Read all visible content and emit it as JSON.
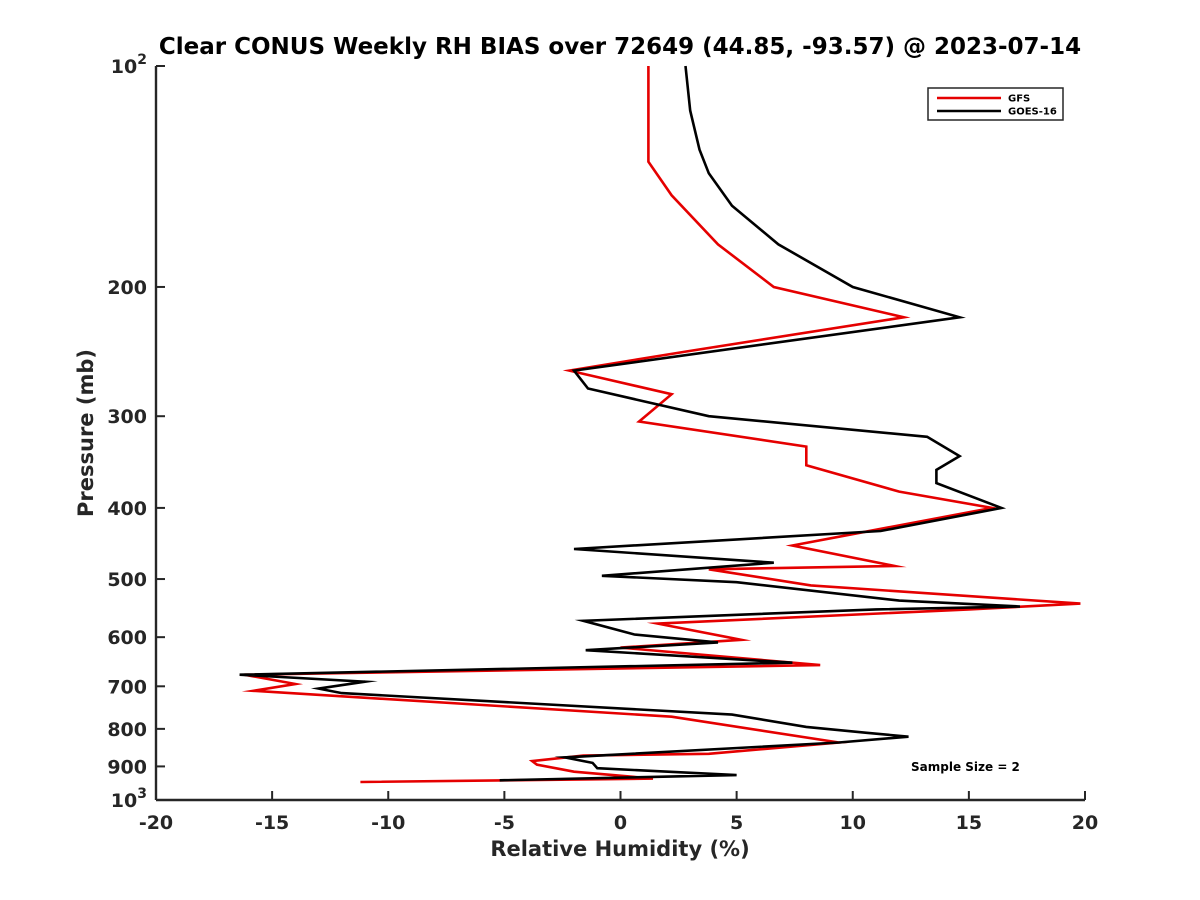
{
  "chart_data": {
    "type": "line",
    "title": "Clear CONUS Weekly RH BIAS over 72649 (44.85, -93.57) @ 2023-07-14",
    "xlabel": "Relative Humidity (%)",
    "ylabel": "Pressure (mb)",
    "xlim": [
      -20,
      20
    ],
    "ylim": [
      100,
      1000
    ],
    "y_scale": "log",
    "y_reversed": true,
    "x_ticks": [
      -20,
      -15,
      -10,
      -5,
      0,
      5,
      10,
      15,
      20
    ],
    "x_tick_labels": [
      "-20",
      "-15",
      "-10",
      "-5",
      "0",
      "5",
      "10",
      "15",
      "20"
    ],
    "y_tick_values": [
      100,
      200,
      300,
      400,
      500,
      600,
      700,
      800,
      900,
      1000
    ],
    "y_tick_labels": [
      "10^2",
      "200",
      "300",
      "400",
      "500",
      "600",
      "700",
      "800",
      "900",
      "10^3"
    ],
    "grid": false,
    "legend_position": "top-right",
    "annotation": "Sample Size = 2",
    "series": [
      {
        "name": "GFS",
        "color": "#e50000",
        "points": [
          [
            1.2,
            100
          ],
          [
            1.2,
            115
          ],
          [
            1.2,
            135
          ],
          [
            2.2,
            150
          ],
          [
            4.2,
            175
          ],
          [
            6.6,
            200
          ],
          [
            12.2,
            220
          ],
          [
            2.8,
            245
          ],
          [
            -2.2,
            260
          ],
          [
            2.2,
            280
          ],
          [
            0.8,
            305
          ],
          [
            8.0,
            330
          ],
          [
            8.0,
            350
          ],
          [
            12.0,
            380
          ],
          [
            16.0,
            400
          ],
          [
            7.4,
            450
          ],
          [
            11.8,
            480
          ],
          [
            3.8,
            485
          ],
          [
            8.2,
            510
          ],
          [
            19.8,
            540
          ],
          [
            15.0,
            550
          ],
          [
            1.6,
            575
          ],
          [
            5.2,
            605
          ],
          [
            0.0,
            620
          ],
          [
            8.6,
            655
          ],
          [
            -16.2,
            675
          ],
          [
            -14.0,
            695
          ],
          [
            -15.8,
            710
          ],
          [
            2.2,
            770
          ],
          [
            9.4,
            835
          ],
          [
            3.8,
            865
          ],
          [
            -1.6,
            870
          ],
          [
            -3.8,
            885
          ],
          [
            -3.6,
            895
          ],
          [
            -2.0,
            915
          ],
          [
            1.4,
            935
          ],
          [
            -11.2,
            945
          ]
        ]
      },
      {
        "name": "GOES-16",
        "color": "#000000",
        "points": [
          [
            2.8,
            100
          ],
          [
            3.0,
            115
          ],
          [
            3.4,
            130
          ],
          [
            3.8,
            140
          ],
          [
            4.8,
            155
          ],
          [
            6.8,
            175
          ],
          [
            10.0,
            200
          ],
          [
            14.6,
            220
          ],
          [
            -2.0,
            260
          ],
          [
            -1.4,
            275
          ],
          [
            3.8,
            300
          ],
          [
            13.2,
            320
          ],
          [
            14.6,
            340
          ],
          [
            13.6,
            355
          ],
          [
            13.6,
            370
          ],
          [
            16.4,
            400
          ],
          [
            11.2,
            430
          ],
          [
            -2.0,
            455
          ],
          [
            6.6,
            475
          ],
          [
            -0.8,
            495
          ],
          [
            5.0,
            505
          ],
          [
            12.0,
            535
          ],
          [
            17.2,
            545
          ],
          [
            11.0,
            550
          ],
          [
            -1.6,
            570
          ],
          [
            0.6,
            595
          ],
          [
            4.2,
            610
          ],
          [
            -1.5,
            625
          ],
          [
            7.4,
            650
          ],
          [
            -16.4,
            675
          ],
          [
            -11.0,
            690
          ],
          [
            -13.0,
            705
          ],
          [
            -12.0,
            715
          ],
          [
            4.8,
            765
          ],
          [
            8.0,
            795
          ],
          [
            10.6,
            810
          ],
          [
            12.4,
            820
          ],
          [
            9.4,
            835
          ],
          [
            -2.4,
            875
          ],
          [
            -1.2,
            890
          ],
          [
            -1.0,
            905
          ],
          [
            5.0,
            925
          ],
          [
            -5.2,
            940
          ]
        ]
      }
    ]
  }
}
